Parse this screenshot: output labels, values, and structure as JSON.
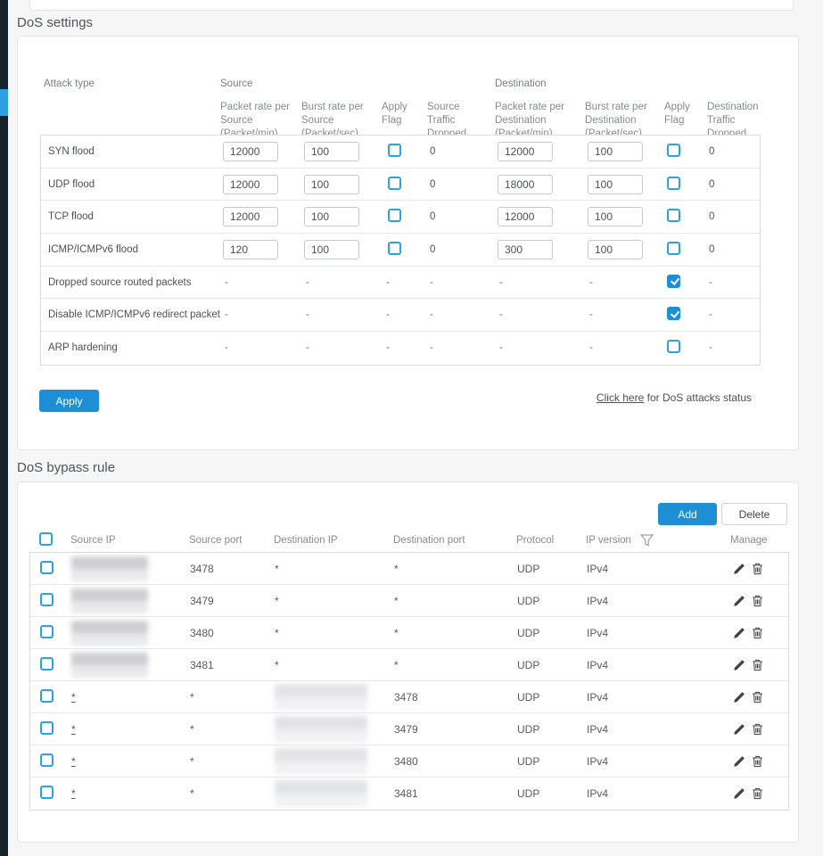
{
  "dos_settings": {
    "title": "DoS settings",
    "dash": "-",
    "headers": {
      "attack_type": "Attack type",
      "source_group": "Source",
      "destination_group": "Destination",
      "src_rate": "Packet rate per Source (Packet/min)",
      "src_burst": "Burst rate per Source (Packet/sec)",
      "src_flag": "Apply Flag",
      "src_dropped": "Source Traffic Dropped",
      "dst_rate": "Packet rate per Destination (Packet/min)",
      "dst_burst": "Burst rate per Destination (Packet/sec)",
      "dst_flag": "Apply Flag",
      "dst_dropped": "Destination Traffic Dropped"
    },
    "rows": [
      {
        "attack_type": "SYN flood",
        "editable": true,
        "src_rate": "12000",
        "src_burst": "100",
        "src_flag_checked": false,
        "src_dropped": "0",
        "dst_rate": "12000",
        "dst_burst": "100",
        "dst_flag_checked": false,
        "dst_dropped": "0"
      },
      {
        "attack_type": "UDP flood",
        "editable": true,
        "src_rate": "12000",
        "src_burst": "100",
        "src_flag_checked": false,
        "src_dropped": "0",
        "dst_rate": "18000",
        "dst_burst": "100",
        "dst_flag_checked": false,
        "dst_dropped": "0"
      },
      {
        "attack_type": "TCP flood",
        "editable": true,
        "src_rate": "12000",
        "src_burst": "100",
        "src_flag_checked": false,
        "src_dropped": "0",
        "dst_rate": "12000",
        "dst_burst": "100",
        "dst_flag_checked": false,
        "dst_dropped": "0"
      },
      {
        "attack_type": "ICMP/ICMPv6 flood",
        "editable": true,
        "src_rate": "120",
        "src_burst": "100",
        "src_flag_checked": false,
        "src_dropped": "0",
        "dst_rate": "300",
        "dst_burst": "100",
        "dst_flag_checked": false,
        "dst_dropped": "0"
      },
      {
        "attack_type": "Dropped source routed packets",
        "editable": false,
        "dst_flag_checked": true
      },
      {
        "attack_type": "Disable ICMP/ICMPv6 redirect packet",
        "editable": false,
        "dst_flag_checked": true
      },
      {
        "attack_type": "ARP hardening",
        "editable": false,
        "dst_flag_checked": false
      }
    ],
    "apply_button": "Apply",
    "status_link": {
      "link_text": "Click here",
      "rest_text": " for DoS attacks status"
    }
  },
  "dos_bypass": {
    "title": "DoS bypass rule",
    "add_button": "Add",
    "delete_button": "Delete",
    "columns": [
      "Source IP",
      "Source port",
      "Destination IP",
      "Destination port",
      "Protocol",
      "IP version",
      "Manage"
    ],
    "rows": [
      {
        "source_ip_blurred": true,
        "source_port": "3478",
        "dest_ip": "*",
        "dest_port": "*",
        "protocol": "UDP",
        "ip_version": "IPv4"
      },
      {
        "source_ip_blurred": true,
        "source_port": "3479",
        "dest_ip": "*",
        "dest_port": "*",
        "protocol": "UDP",
        "ip_version": "IPv4"
      },
      {
        "source_ip_blurred": true,
        "source_port": "3480",
        "dest_ip": "*",
        "dest_port": "*",
        "protocol": "UDP",
        "ip_version": "IPv4"
      },
      {
        "source_ip_blurred": true,
        "source_port": "3481",
        "dest_ip": "*",
        "dest_port": "*",
        "protocol": "UDP",
        "ip_version": "IPv4"
      },
      {
        "source_ip": "*",
        "source_ip_underlined": true,
        "source_port": "*",
        "dest_ip_blurred": true,
        "dest_port": "3478",
        "protocol": "UDP",
        "ip_version": "IPv4"
      },
      {
        "source_ip": "*",
        "source_ip_underlined": true,
        "source_port": "*",
        "dest_ip_blurred": true,
        "dest_port": "3479",
        "protocol": "UDP",
        "ip_version": "IPv4"
      },
      {
        "source_ip": "*",
        "source_ip_underlined": true,
        "source_port": "*",
        "dest_ip_blurred": true,
        "dest_port": "3480",
        "protocol": "UDP",
        "ip_version": "IPv4"
      },
      {
        "source_ip": "*",
        "source_ip_underlined": true,
        "source_port": "*",
        "dest_ip_blurred": true,
        "dest_port": "3481",
        "protocol": "UDP",
        "ip_version": "IPv4"
      }
    ]
  },
  "colors": {
    "accent_blue": "#1e8fd5",
    "checkbox_blue": "#2ba2e2",
    "rail_dark": "#15212b",
    "rail_active": "#2e9fe2"
  }
}
